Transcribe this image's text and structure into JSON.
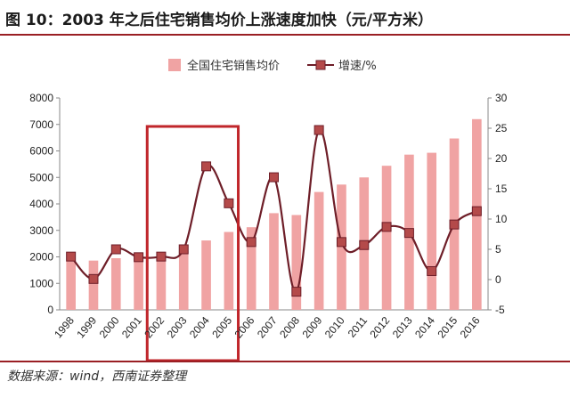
{
  "title": "图 10：2003 年之后住宅销售均价上涨速度加快（元/平方米）",
  "source": "数据来源：wind，西南证券整理",
  "colors": {
    "bar": "#f0a3a3",
    "line": "#6e1e28",
    "marker": "#b44a4a",
    "highlight": "#c0262b",
    "rule": "#9a1f24"
  },
  "chart_data": {
    "type": "bar",
    "categories": [
      "1998",
      "1999",
      "2000",
      "2001",
      "2002",
      "2003",
      "2004",
      "2005",
      "2006",
      "2007",
      "2008",
      "2009",
      "2010",
      "2011",
      "2012",
      "2013",
      "2014",
      "2015",
      "2016"
    ],
    "series": [
      {
        "name": "全国住宅销售均价",
        "type": "bar",
        "axis": "left",
        "values": [
          1850,
          1860,
          1950,
          2020,
          2100,
          2200,
          2620,
          2940,
          3120,
          3650,
          3580,
          4450,
          4730,
          5000,
          5440,
          5860,
          5930,
          6470,
          7200
        ]
      },
      {
        "name": "增速/%",
        "type": "line",
        "axis": "right",
        "values": [
          3.8,
          0.1,
          5.0,
          3.7,
          3.8,
          5.0,
          18.7,
          12.6,
          6.2,
          16.9,
          -2.0,
          24.7,
          6.2,
          5.7,
          8.7,
          7.7,
          1.4,
          9.1,
          11.3
        ]
      }
    ],
    "y_left": {
      "ticks": [
        "0",
        "1000",
        "2000",
        "3000",
        "4000",
        "5000",
        "6000",
        "7000",
        "8000"
      ],
      "range": [
        0,
        8000
      ]
    },
    "y_right": {
      "ticks": [
        "-5",
        "0",
        "5",
        "10",
        "15",
        "20",
        "25",
        "30"
      ],
      "range": [
        -5,
        30
      ]
    },
    "highlight": {
      "from": "2002",
      "to": "2005"
    },
    "legend_position": "top"
  }
}
